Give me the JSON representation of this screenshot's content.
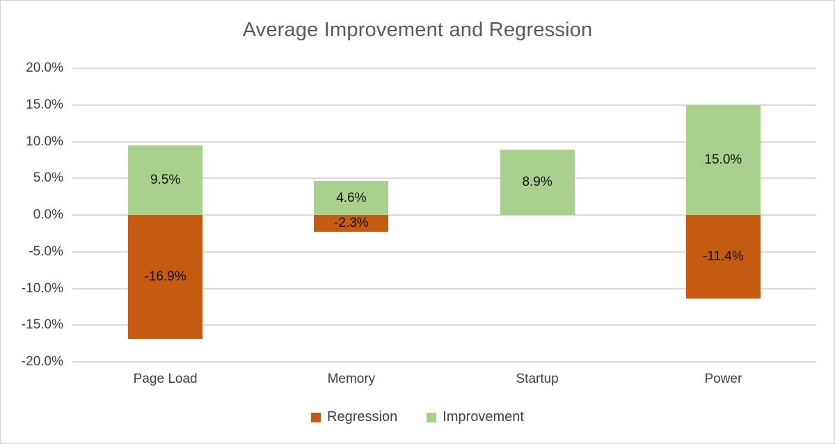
{
  "chart_data": {
    "type": "bar",
    "title": "Average Improvement and Regression",
    "categories": [
      "Page Load",
      "Memory",
      "Startup",
      "Power"
    ],
    "series": [
      {
        "name": "Regression",
        "color": "#C55A11",
        "values": [
          -16.9,
          -2.3,
          null,
          -11.4
        ],
        "labels": [
          "-16.9%",
          "-2.3%",
          "",
          "-11.4%"
        ]
      },
      {
        "name": "Improvement",
        "color": "#A9D18E",
        "values": [
          9.5,
          4.6,
          8.9,
          15.0
        ],
        "labels": [
          "9.5%",
          "4.6%",
          "8.9%",
          "15.0%"
        ]
      }
    ],
    "ylim": [
      -20,
      20
    ],
    "ytick_step": 5,
    "ytick_labels": [
      "20.0%",
      "15.0%",
      "10.0%",
      "5.0%",
      "0.0%",
      "-5.0%",
      "-10.0%",
      "-15.0%",
      "-20.0%"
    ],
    "grid": true,
    "gridline_color": "#D9D9D9",
    "legend_position": "bottom",
    "bar_slot_fraction": 0.4
  }
}
